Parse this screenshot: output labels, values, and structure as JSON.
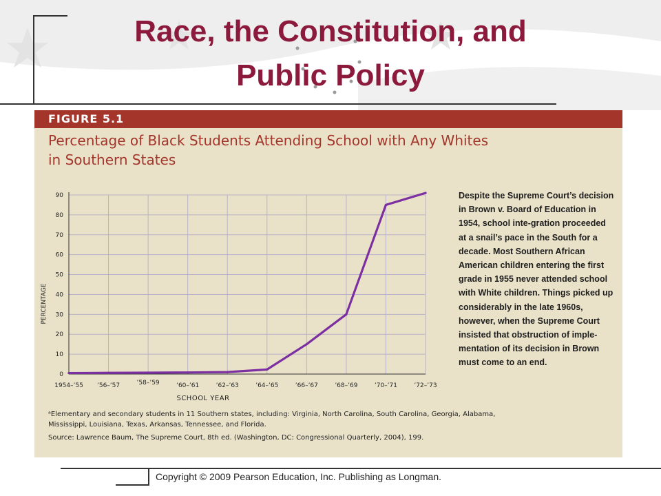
{
  "slide": {
    "title_line1": "Race, the Constitution, and",
    "title_line2": "Public Policy",
    "copyright": "Copyright © 2009 Pearson Education, Inc. Publishing as Longman.",
    "title_color": "#8b1a3c"
  },
  "figure": {
    "label": "FIGURE 5.1",
    "title_line1": "Percentage of Black Students Attending School with Any Whites",
    "title_line2": "in Southern States",
    "caption": "Despite the Supreme Court’s decision in Brown v. Board of Education in 1954, school inte-gration proceeded at a snail’s pace in the South for a decade. Most Southern African American children entering the first grade in 1955 never attended school with White children. Things picked up considerably in the late 1960s, however, when the Supreme Court insisted that obstruction of imple-mentation of its decision in Brown must come to an end.",
    "footnote": "ᵃElementary and secondary students in 11 Southern states, including: Virginia, North Carolina, South Carolina, Georgia, Alabama, Mississippi, Louisiana, Texas, Arkansas, Tennessee, and Florida.",
    "source": "Source: Lawrence Baum, The Supreme Court, 8th ed. (Washington, DC: Congressional Quarterly, 2004), 199.",
    "bar_color": "#a3352b",
    "line_color": "#7b2fa0"
  },
  "chart_data": {
    "type": "line",
    "xlabel": "SCHOOL YEAR",
    "ylabel": "PERCENTAGE",
    "ylim": [
      0,
      90
    ],
    "yticks": [
      0,
      10,
      20,
      30,
      40,
      50,
      60,
      70,
      80,
      90
    ],
    "xtick_labels": [
      "1954–’55",
      "’56–’57",
      "’58–’59",
      "’60–’61",
      "’62–’63",
      "’64–’65",
      "’66–’67",
      "’68–’69",
      "’70–’71",
      "’72–’73"
    ],
    "grid": true,
    "series": [
      {
        "x": [
          "1954–’55",
          "’56–’57",
          "’58–’59",
          "’60–’61",
          "’62–’63",
          "’64–’65",
          "’66–’67",
          "’68–’69",
          "’70–’71",
          "’72–’73"
        ],
        "values": [
          0.5,
          0.6,
          0.7,
          0.8,
          1.0,
          2.3,
          15,
          30,
          85,
          91
        ]
      }
    ]
  }
}
